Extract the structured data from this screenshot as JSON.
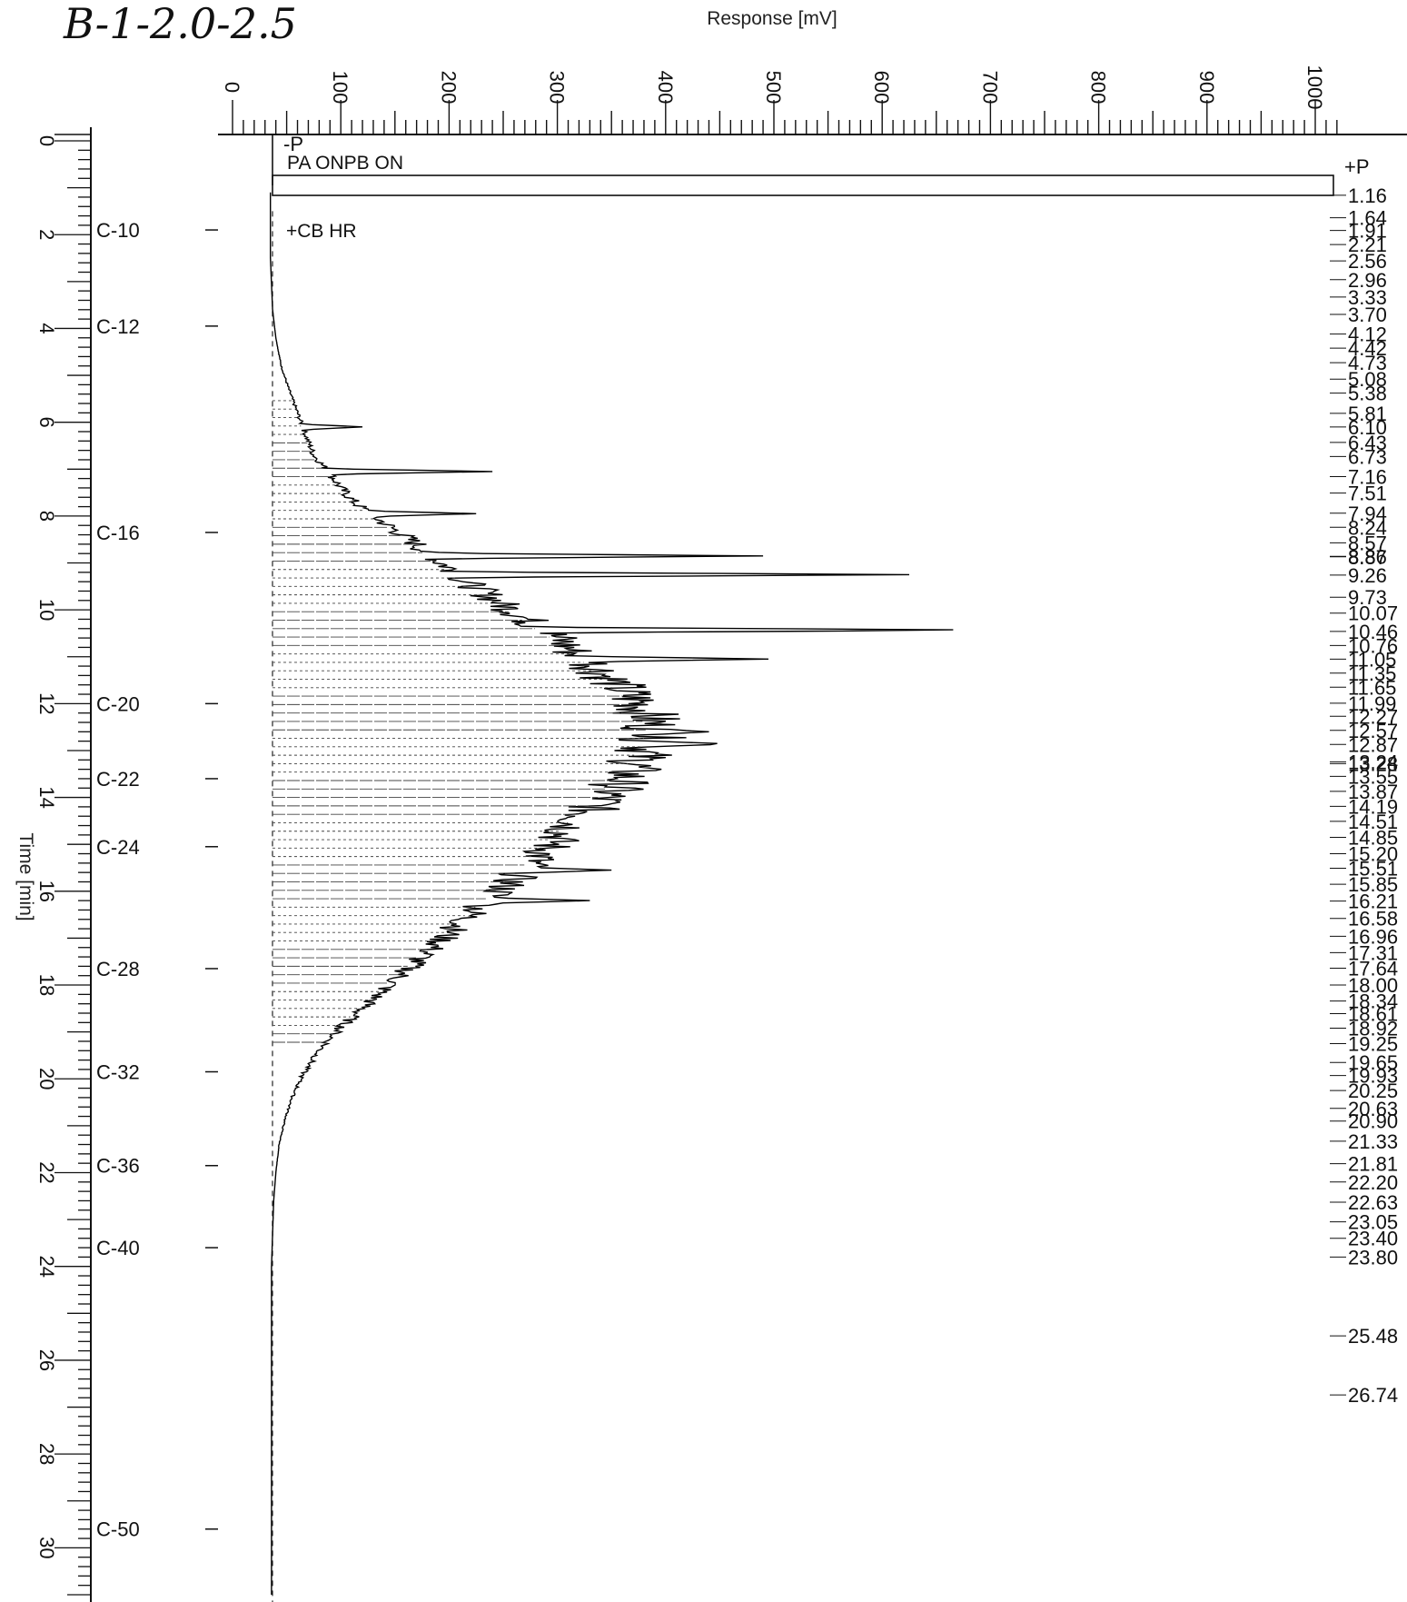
{
  "sample_label": "B-1-2.0-2.5",
  "chart_data": {
    "type": "line",
    "orientation": "vertical-time",
    "title": "",
    "xlabel": "Response [mV]",
    "ylabel": "Time [min]",
    "xlim": [
      0,
      1000
    ],
    "ylim": [
      0,
      31
    ],
    "x_ticks": [
      0,
      100,
      200,
      300,
      400,
      500,
      600,
      700,
      800,
      900,
      1000
    ],
    "y_ticks": [
      0,
      2,
      4,
      6,
      8,
      10,
      12,
      14,
      16,
      18,
      20,
      22,
      24,
      26,
      28,
      30
    ],
    "grid": false,
    "markers": [
      {
        "label": "-P",
        "time": 0.1
      },
      {
        "label": "PA ONPB ON",
        "time": 0.45
      },
      {
        "label": "+P",
        "time": 0.95
      },
      {
        "label": "+CB HR",
        "time": 1.9
      }
    ],
    "carbon_markers": [
      {
        "label": "C-10",
        "time": 1.9
      },
      {
        "label": "C-12",
        "time": 3.95
      },
      {
        "label": "C-16",
        "time": 8.35
      },
      {
        "label": "C-20",
        "time": 12.0
      },
      {
        "label": "C-22",
        "time": 13.6
      },
      {
        "label": "C-24",
        "time": 15.05
      },
      {
        "label": "C-28",
        "time": 17.65
      },
      {
        "label": "C-32",
        "time": 19.85
      },
      {
        "label": "C-36",
        "time": 21.85
      },
      {
        "label": "C-40",
        "time": 23.6
      },
      {
        "label": "C-50",
        "time": 29.6
      }
    ],
    "retention_times": [
      "1.16",
      "1.64",
      "1.91",
      "2.21",
      "2.56",
      "2.96",
      "3.33",
      "3.70",
      "4.12",
      "4.42",
      "4.73",
      "5.08",
      "5.38",
      "5.81",
      "6.10",
      "6.43",
      "6.73",
      "7.16",
      "7.51",
      "7.94",
      "8.24",
      "8.57",
      "8.87",
      "8.86",
      "9.26",
      "9.73",
      "10.07",
      "10.46",
      "10.76",
      "11.05",
      "11.35",
      "11.65",
      "11.99",
      "12.27",
      "12.57",
      "12.87",
      "13.24",
      "13.28",
      "13.55",
      "13.87",
      "14.19",
      "14.51",
      "14.85",
      "15.20",
      "15.51",
      "15.85",
      "16.21",
      "16.58",
      "16.96",
      "17.31",
      "17.64",
      "18.00",
      "18.34",
      "18.61",
      "18.92",
      "19.25",
      "19.65",
      "19.93",
      "20.25",
      "20.63",
      "20.90",
      "21.33",
      "21.81",
      "22.20",
      "22.63",
      "23.05",
      "23.40",
      "23.80",
      "25.48",
      "26.74"
    ],
    "series": [
      {
        "x": [
          35,
          35,
          35,
          37,
          40,
          45,
          52,
          60,
          68,
          75,
          90,
          100,
          112,
          130,
          150,
          170,
          185,
          200,
          215,
          230,
          250,
          265,
          285,
          300,
          315,
          330,
          345,
          360,
          375,
          385,
          390,
          385,
          372,
          358,
          340,
          318,
          300,
          282,
          262,
          242,
          220,
          200,
          180,
          160,
          140,
          120,
          100,
          80,
          65,
          55,
          48,
          43,
          40,
          38,
          37,
          36,
          36,
          36,
          36
        ],
        "y": [
          0,
          1.2,
          2.5,
          3.6,
          4.2,
          4.8,
          5.3,
          5.8,
          6.3,
          6.7,
          7.1,
          7.4,
          7.7,
          8.0,
          8.3,
          8.6,
          8.9,
          9.1,
          9.4,
          9.6,
          9.9,
          10.1,
          10.4,
          10.6,
          10.9,
          11.1,
          11.4,
          11.7,
          12.0,
          12.3,
          12.6,
          12.9,
          13.3,
          13.7,
          14.1,
          14.5,
          14.9,
          15.3,
          15.7,
          16.1,
          16.5,
          16.9,
          17.3,
          17.7,
          18.1,
          18.5,
          18.9,
          19.4,
          19.9,
          20.4,
          20.9,
          21.4,
          22.0,
          22.6,
          23.3,
          24.0,
          26.0,
          28.0,
          31.0
        ]
      }
    ],
    "spikes": [
      {
        "time": 6.1,
        "value": 120
      },
      {
        "time": 7.05,
        "value": 240
      },
      {
        "time": 7.95,
        "value": 225
      },
      {
        "time": 8.85,
        "value": 490
      },
      {
        "time": 9.25,
        "value": 625
      },
      {
        "time": 10.43,
        "value": 700
      },
      {
        "time": 11.05,
        "value": 495
      },
      {
        "time": 12.6,
        "value": 440
      },
      {
        "time": 12.86,
        "value": 460
      },
      {
        "time": 15.55,
        "value": 350
      },
      {
        "time": 16.2,
        "value": 330
      }
    ]
  }
}
